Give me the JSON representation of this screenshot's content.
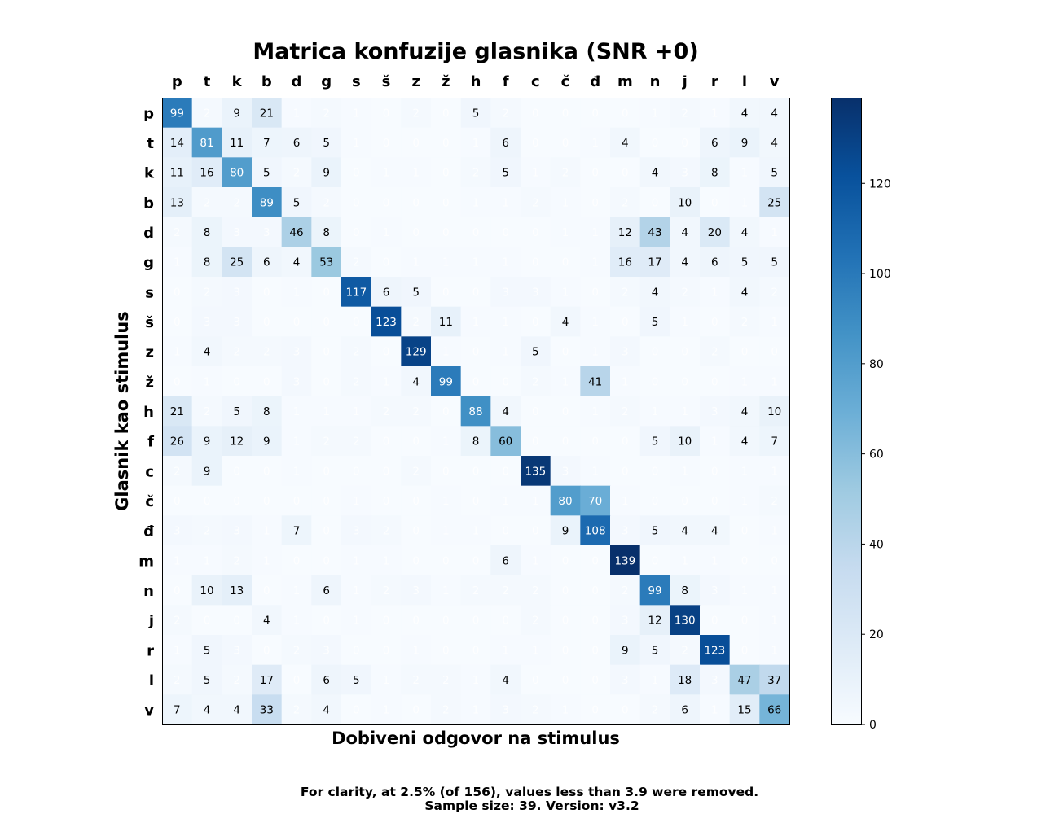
{
  "chart_data": {
    "type": "heatmap",
    "title": "Matrica konfuzije glasnika (SNR +0)",
    "xlabel": "Dobiveni odgovor na stimulus",
    "ylabel": "Glasnik kao stimulus",
    "x_categories": [
      "p",
      "t",
      "k",
      "b",
      "d",
      "g",
      "s",
      "š",
      "z",
      "ž",
      "h",
      "f",
      "c",
      "č",
      "đ",
      "m",
      "n",
      "j",
      "r",
      "l",
      "v"
    ],
    "y_categories": [
      "p",
      "t",
      "k",
      "b",
      "d",
      "g",
      "s",
      "š",
      "z",
      "ž",
      "h",
      "f",
      "c",
      "č",
      "đ",
      "m",
      "n",
      "j",
      "r",
      "l",
      "v"
    ],
    "values": [
      [
        99,
        2,
        9,
        21,
        1,
        2,
        1,
        0,
        2,
        0,
        5,
        2,
        0,
        0,
        0,
        0,
        1,
        2,
        1,
        4,
        4
      ],
      [
        14,
        81,
        11,
        7,
        6,
        5,
        1,
        0,
        0,
        0,
        1,
        6,
        0,
        0,
        1,
        4,
        0,
        0,
        6,
        9,
        4
      ],
      [
        11,
        16,
        80,
        5,
        2,
        9,
        0,
        1,
        1,
        0,
        2,
        5,
        1,
        2,
        0,
        0,
        4,
        3,
        8,
        1,
        5
      ],
      [
        13,
        2,
        2,
        89,
        5,
        2,
        0,
        0,
        0,
        0,
        1,
        1,
        2,
        1,
        0,
        2,
        0,
        10,
        0,
        1,
        25
      ],
      [
        2,
        8,
        3,
        3,
        46,
        8,
        0,
        1,
        0,
        0,
        0,
        0,
        0,
        1,
        1,
        12,
        43,
        4,
        20,
        4,
        1
      ],
      [
        1,
        8,
        25,
        6,
        4,
        53,
        2,
        0,
        1,
        1,
        1,
        1,
        0,
        0,
        1,
        16,
        17,
        4,
        6,
        5,
        5
      ],
      [
        0,
        2,
        3,
        0,
        1,
        0,
        117,
        6,
        5,
        0,
        0,
        3,
        3,
        1,
        0,
        2,
        4,
        2,
        1,
        4,
        2
      ],
      [
        0,
        3,
        3,
        0,
        0,
        0,
        0,
        123,
        2,
        11,
        1,
        1,
        0,
        4,
        1,
        0,
        5,
        1,
        0,
        2,
        1
      ],
      [
        1,
        4,
        2,
        2,
        3,
        0,
        2,
        0,
        129,
        1,
        0,
        1,
        5,
        0,
        1,
        3,
        0,
        0,
        2,
        0,
        0
      ],
      [
        0,
        1,
        0,
        0,
        3,
        0,
        2,
        1,
        4,
        99,
        0,
        0,
        2,
        1,
        41,
        1,
        0,
        0,
        0,
        1,
        1
      ],
      [
        21,
        2,
        5,
        8,
        1,
        1,
        1,
        2,
        2,
        0,
        88,
        4,
        0,
        0,
        1,
        2,
        1,
        1,
        3,
        4,
        10
      ],
      [
        26,
        9,
        12,
        9,
        1,
        2,
        2,
        0,
        0,
        1,
        8,
        60,
        0,
        0,
        0,
        0,
        5,
        10,
        1,
        4,
        7
      ],
      [
        2,
        9,
        0,
        0,
        1,
        0,
        0,
        0,
        2,
        0,
        0,
        0,
        135,
        3,
        1,
        0,
        0,
        1,
        0,
        1,
        1
      ],
      [
        0,
        0,
        0,
        0,
        0,
        0,
        1,
        0,
        0,
        1,
        0,
        1,
        1,
        80,
        70,
        1,
        0,
        0,
        0,
        1,
        2
      ],
      [
        3,
        2,
        3,
        1,
        7,
        0,
        3,
        2,
        0,
        1,
        1,
        0,
        0,
        9,
        108,
        3,
        5,
        4,
        4,
        0,
        1
      ],
      [
        1,
        1,
        2,
        1,
        0,
        0,
        1,
        1,
        0,
        0,
        0,
        6,
        1,
        0,
        0,
        139,
        0,
        1,
        1,
        0,
        0
      ],
      [
        0,
        10,
        13,
        0,
        1,
        6,
        1,
        2,
        3,
        1,
        2,
        2,
        2,
        0,
        0,
        2,
        99,
        8,
        3,
        1,
        1
      ],
      [
        2,
        0,
        0,
        4,
        1,
        0,
        1,
        0,
        0,
        0,
        0,
        0,
        2,
        0,
        0,
        3,
        12,
        130,
        0,
        0,
        1
      ],
      [
        1,
        5,
        3,
        0,
        2,
        3,
        0,
        0,
        1,
        0,
        0,
        1,
        1,
        0,
        0,
        9,
        5,
        2,
        123,
        0,
        1
      ],
      [
        2,
        5,
        2,
        17,
        0,
        6,
        5,
        1,
        2,
        2,
        1,
        4,
        0,
        0,
        0,
        3,
        1,
        18,
        3,
        47,
        37
      ],
      [
        7,
        4,
        4,
        33,
        2,
        4,
        0,
        1,
        0,
        2,
        1,
        3,
        2,
        1,
        0,
        0,
        2,
        6,
        1,
        15,
        66
      ]
    ],
    "value_range": [
      0,
      139
    ],
    "text_threshold": 3.9,
    "colorbar": {
      "min": 0,
      "max": 139,
      "ticks": [
        0,
        20,
        40,
        60,
        80,
        100,
        120
      ],
      "colormap": "Blues"
    },
    "grid": false
  },
  "footnote": {
    "line1": "For clarity, at 2.5% (of 156), values less than 3.9 were removed.",
    "line2": "Sample size: 39. Version: v3.2"
  },
  "colors": {
    "cell_text_dark": "#000000",
    "cell_text_light": "#ffffff",
    "frame": "#000000"
  }
}
